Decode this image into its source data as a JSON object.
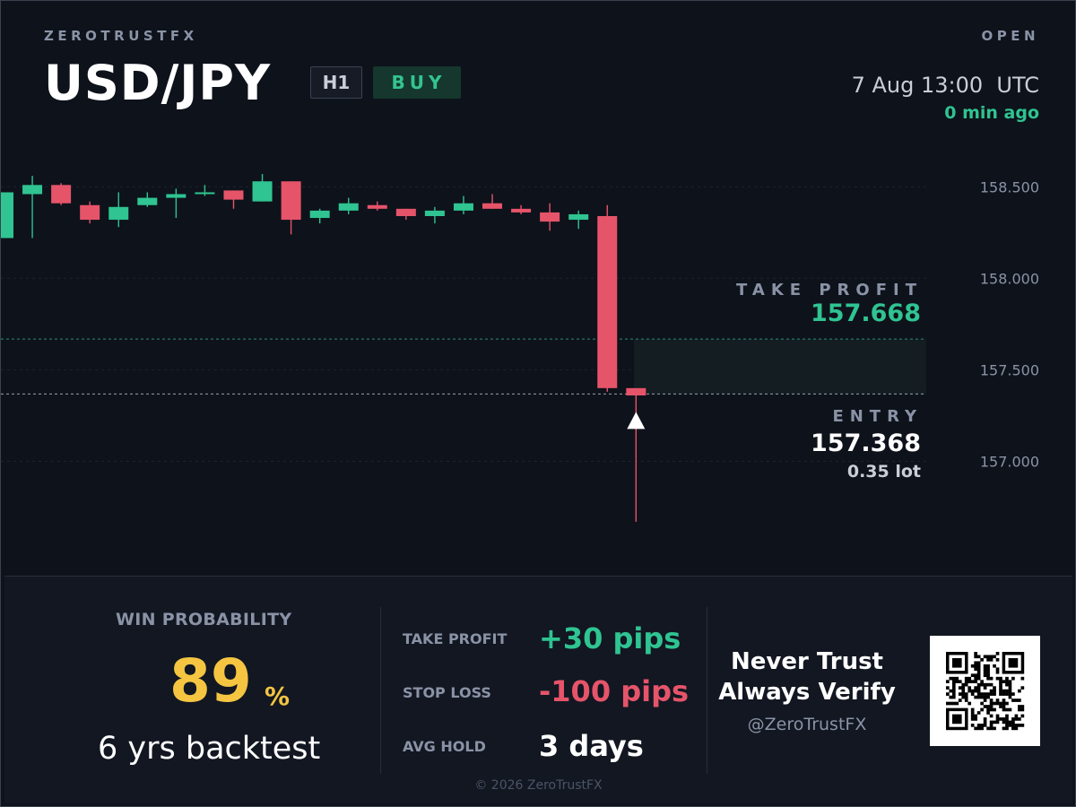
{
  "brand": "ZEROTRUSTFX",
  "status": "OPEN",
  "pair": "USD/JPY",
  "timeframe": "H1",
  "side": "BUY",
  "timestamp": "7 Aug 13:00  UTC",
  "time_ago": "0 min ago",
  "chart": {
    "take_profit_label": "TAKE PROFIT",
    "take_profit_price": "157.668",
    "entry_label": "ENTRY",
    "entry_price": "157.368",
    "lot": "0.35 lot",
    "entry_marker_icon": "up-triangle-icon"
  },
  "chart_data": {
    "type": "candlestick",
    "y_tick_labels": [
      "158.500",
      "158.000",
      "157.500",
      "157.000"
    ],
    "y_ticks": [
      158.5,
      158.0,
      157.5,
      157.0
    ],
    "ylim": [
      156.38,
      158.83
    ],
    "grid": true,
    "take_profit": 157.668,
    "entry": 157.368,
    "candles": [
      {
        "o": 158.22,
        "h": 158.47,
        "l": 158.22,
        "c": 158.47
      },
      {
        "o": 158.46,
        "h": 158.56,
        "l": 158.22,
        "c": 158.51
      },
      {
        "o": 158.51,
        "h": 158.52,
        "l": 158.4,
        "c": 158.41
      },
      {
        "o": 158.4,
        "h": 158.42,
        "l": 158.3,
        "c": 158.32
      },
      {
        "o": 158.32,
        "h": 158.47,
        "l": 158.28,
        "c": 158.39
      },
      {
        "o": 158.4,
        "h": 158.47,
        "l": 158.39,
        "c": 158.44
      },
      {
        "o": 158.44,
        "h": 158.49,
        "l": 158.33,
        "c": 158.46
      },
      {
        "o": 158.46,
        "h": 158.51,
        "l": 158.45,
        "c": 158.47
      },
      {
        "o": 158.48,
        "h": 158.48,
        "l": 158.38,
        "c": 158.43
      },
      {
        "o": 158.42,
        "h": 158.57,
        "l": 158.42,
        "c": 158.53
      },
      {
        "o": 158.53,
        "h": 158.53,
        "l": 158.24,
        "c": 158.32
      },
      {
        "o": 158.33,
        "h": 158.38,
        "l": 158.3,
        "c": 158.37
      },
      {
        "o": 158.37,
        "h": 158.44,
        "l": 158.35,
        "c": 158.41
      },
      {
        "o": 158.4,
        "h": 158.42,
        "l": 158.37,
        "c": 158.38
      },
      {
        "o": 158.38,
        "h": 158.38,
        "l": 158.32,
        "c": 158.34
      },
      {
        "o": 158.34,
        "h": 158.39,
        "l": 158.3,
        "c": 158.37
      },
      {
        "o": 158.37,
        "h": 158.45,
        "l": 158.35,
        "c": 158.41
      },
      {
        "o": 158.41,
        "h": 158.46,
        "l": 158.38,
        "c": 158.38
      },
      {
        "o": 158.38,
        "h": 158.4,
        "l": 158.35,
        "c": 158.36
      },
      {
        "o": 158.36,
        "h": 158.41,
        "l": 158.26,
        "c": 158.31
      },
      {
        "o": 158.32,
        "h": 158.37,
        "l": 158.27,
        "c": 158.35
      },
      {
        "o": 158.34,
        "h": 158.4,
        "l": 157.38,
        "c": 157.4
      },
      {
        "o": 157.4,
        "h": 157.4,
        "l": 156.67,
        "c": 157.36
      }
    ]
  },
  "stats": {
    "win_probability_label": "WIN PROBABILITY",
    "win_probability_value": "89",
    "win_probability_value_num": 89,
    "win_probability_unit": "%",
    "backtest": "6 yrs backtest",
    "take_profit_label": "TAKE PROFIT",
    "take_profit_value": "+30 pips",
    "stop_loss_label": "STOP LOSS",
    "stop_loss_value": "-100 pips",
    "avg_hold_label": "AVG HOLD",
    "avg_hold_value": "3 days"
  },
  "promo": {
    "line1": "Never Trust",
    "line2": "Always Verify",
    "handle": "@ZeroTrustFX",
    "qr_icon": "qr-code-icon"
  },
  "footer": {
    "copyright": "© 2026 ZeroTrustFX"
  },
  "colors": {
    "bullish": "#2fc491",
    "bearish": "#e6546a",
    "win_probability": "#f5c542",
    "take_profit": "#2fc491",
    "stop_loss": "#e6546a",
    "background": "#0e121b"
  }
}
